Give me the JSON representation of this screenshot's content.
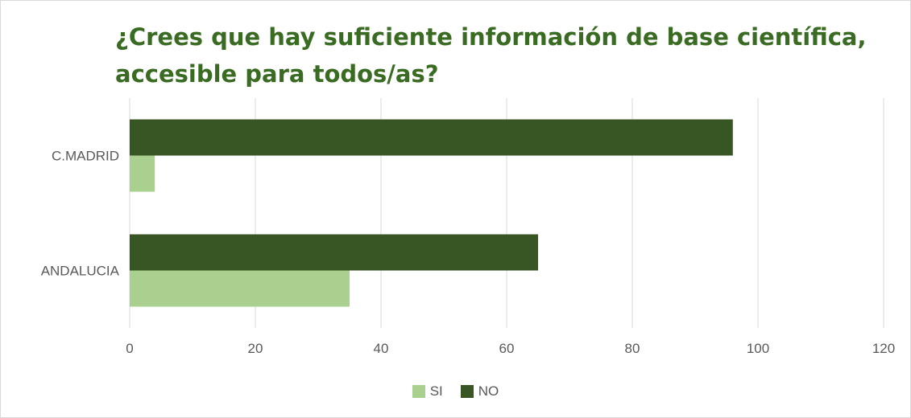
{
  "chart_data": {
    "type": "bar",
    "orientation": "horizontal",
    "title": "¿Crees que hay suficiente información de base científica, accesible para todos/as?",
    "title_lines": [
      "¿Crees que hay suficiente información de base científica,",
      "accesible para todos/as?"
    ],
    "categories": [
      "C.MADRID",
      "ANDALUCIA"
    ],
    "series": [
      {
        "name": "NO",
        "values": [
          96,
          65
        ],
        "color": "#375623"
      },
      {
        "name": "SI",
        "values": [
          4,
          35
        ],
        "color": "#a9d08e"
      }
    ],
    "xlim": [
      0,
      120
    ],
    "xticks": [
      0,
      20,
      40,
      60,
      80,
      100,
      120
    ],
    "grid": true,
    "legend_position": "bottom",
    "legend_order": [
      "SI",
      "NO"
    ],
    "title_color": "#3a6b22"
  }
}
